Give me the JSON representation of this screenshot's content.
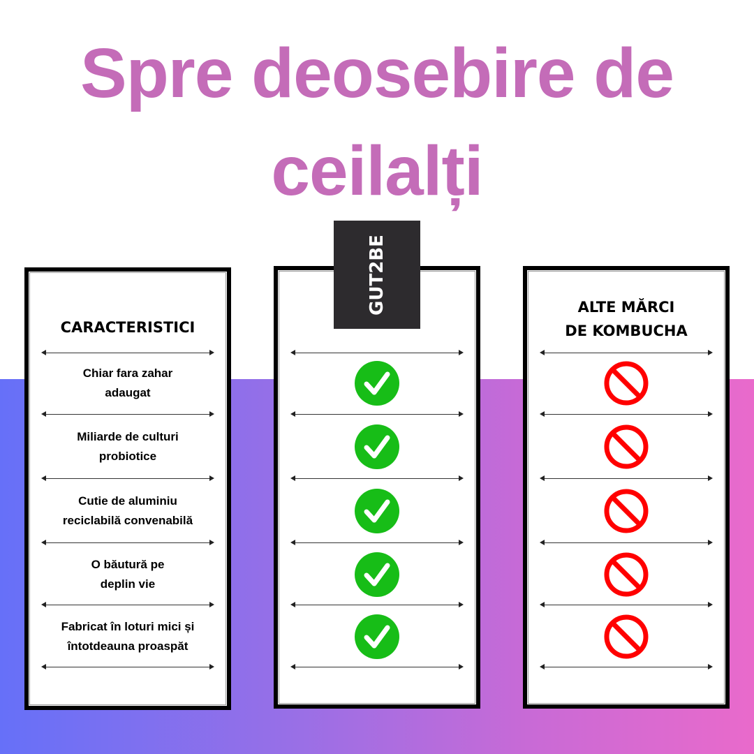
{
  "title": {
    "line1": "Spre deosebire de",
    "line2": "ceilalți"
  },
  "columns": {
    "features_header": "CARACTERISTICI",
    "brand_name": "GUT2BE",
    "others_header_line1": "ALTE MĂRCI",
    "others_header_line2": "DE KOMBUCHA"
  },
  "features": [
    {
      "line1": "Chiar fara zahar",
      "line2": "adaugat",
      "gut2be": "check",
      "others": "no"
    },
    {
      "line1": "Miliarde de culturi",
      "line2": "probiotice",
      "gut2be": "check",
      "others": "no"
    },
    {
      "line1": "Cutie de aluminiu",
      "line2": "reciclabilă convenabilă",
      "gut2be": "check",
      "others": "no"
    },
    {
      "line1": "O băutură pe",
      "line2": "deplin vie",
      "gut2be": "check",
      "others": "no"
    },
    {
      "line1": "Fabricat în loturi mici și",
      "line2": "întotdeauna proaspăt",
      "gut2be": "check",
      "others": "no"
    }
  ],
  "colors": {
    "title": "#c46cb8",
    "check": "#17bd17",
    "no": "#ff0000",
    "logo_bg": "#2d2b2e",
    "gradient_start": "#6670f8",
    "gradient_end": "#e96acb"
  }
}
